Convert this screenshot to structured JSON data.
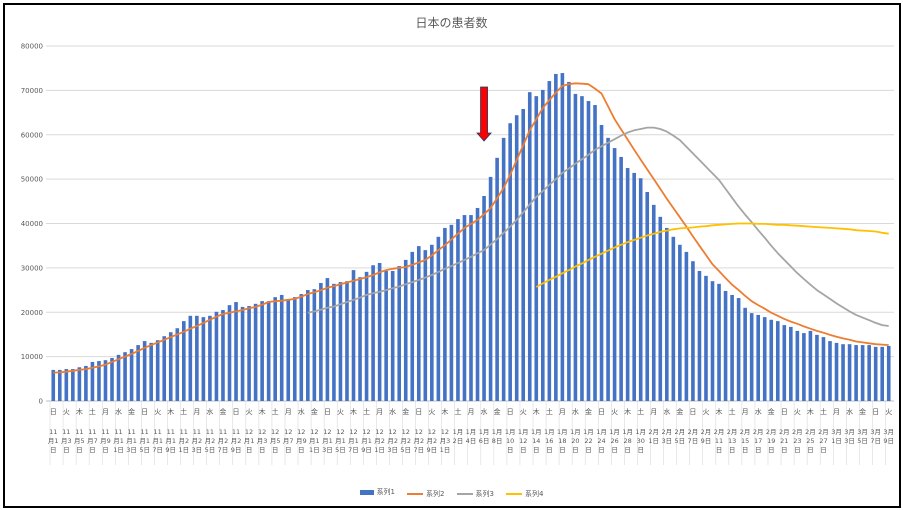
{
  "chart_data": {
    "type": "bar",
    "title": "日本の患者数",
    "ylim": [
      0,
      80000
    ],
    "y_ticks": [
      "0",
      "10000",
      "20000",
      "30000",
      "40000",
      "50000",
      "60000",
      "70000",
      "80000"
    ],
    "grid": true,
    "legend_placement": "bottom",
    "x_tick_weekdays": [
      "日",
      "火",
      "木",
      "土",
      "月",
      "水",
      "金",
      "日",
      "火",
      "木",
      "土",
      "月",
      "水",
      "金",
      "日",
      "火",
      "木",
      "土",
      "月",
      "水",
      "金",
      "日",
      "火",
      "木",
      "土",
      "月",
      "水",
      "金",
      "日",
      "火",
      "木",
      "土",
      "月",
      "水",
      "金",
      "日",
      "火",
      "木",
      "土",
      "月",
      "水",
      "金",
      "日",
      "火",
      "木",
      "土",
      "月",
      "水",
      "金",
      "日",
      "火",
      "木",
      "土",
      "月",
      "水",
      "金",
      "日",
      "火",
      "木",
      "土",
      "月",
      "水",
      "金",
      "日",
      "火"
    ],
    "x_tick_dates": [
      "11月1日",
      "11月3日",
      "11月5日",
      "11月7日",
      "11月9日",
      "11月11日",
      "11月13日",
      "11月15日",
      "11月17日",
      "11月19日",
      "11月21日",
      "11月23日",
      "11月25日",
      "11月27日",
      "11月29日",
      "12月1日",
      "12月3日",
      "12月5日",
      "12月7日",
      "12月9日",
      "12月11日",
      "12月13日",
      "12月15日",
      "12月17日",
      "12月19日",
      "12月21日",
      "12月23日",
      "12月25日",
      "12月27日",
      "12月29日",
      "12月31日",
      "1月2日",
      "1月4日",
      "1月6日",
      "1月8日",
      "1月10日",
      "1月12日",
      "1月14日",
      "1月16日",
      "1月18日",
      "1月20日",
      "1月22日",
      "1月24日",
      "1月26日",
      "1月28日",
      "1月30日",
      "2月1日",
      "2月3日",
      "2月5日",
      "2月7日",
      "2月9日",
      "2月11日",
      "2月13日",
      "2月15日",
      "2月17日",
      "2月19日",
      "2月21日",
      "2月23日",
      "2月25日",
      "2月27日",
      "3月1日",
      "3月3日",
      "3月5日",
      "3月7日",
      "3月9日"
    ],
    "series": [
      {
        "name": "系列1",
        "type": "bar",
        "color": "#4472C4",
        "values": [
          7000,
          7000,
          7200,
          7200,
          7600,
          7900,
          8800,
          9000,
          9200,
          9700,
          10400,
          11000,
          11700,
          12600,
          13500,
          13100,
          13700,
          14600,
          15500,
          16400,
          18000,
          19200,
          19200,
          18900,
          19200,
          20100,
          20500,
          21600,
          22300,
          21200,
          21400,
          21900,
          22500,
          22500,
          23400,
          23900,
          22800,
          23400,
          24100,
          25000,
          25200,
          26600,
          27700,
          26400,
          26800,
          27000,
          29500,
          27900,
          29100,
          30600,
          31100,
          29300,
          29300,
          30400,
          31800,
          33600,
          34900,
          34000,
          35200,
          37000,
          39000,
          39700,
          41000,
          41900,
          41900,
          43500,
          46200,
          50500,
          54800,
          59300,
          62600,
          64400,
          65800,
          69600,
          68700,
          70100,
          72100,
          73700,
          73900,
          71900,
          69200,
          68700,
          67600,
          66700,
          62200,
          59300,
          57000,
          55000,
          52500,
          51400,
          50200,
          47100,
          44200,
          41500,
          39000,
          37000,
          35200,
          33600,
          31500,
          29300,
          28200,
          27000,
          26400,
          24800,
          23900,
          23200,
          21000,
          19800,
          19400,
          18900,
          18300,
          18000,
          17100,
          16700,
          15800,
          15300,
          15800,
          14900,
          14400,
          13500,
          13100,
          12800,
          12800,
          12600,
          12600,
          12600,
          12200,
          12200,
          12400
        ]
      },
      {
        "name": "系列2",
        "type": "line",
        "color": "#ED7D31",
        "values": [
          6400,
          6450,
          6600,
          6800,
          7000,
          7200,
          7500,
          7800,
          8200,
          8800,
          9400,
          10000,
          10600,
          11300,
          12000,
          12600,
          13200,
          13800,
          14400,
          15000,
          15600,
          16300,
          16900,
          17600,
          18300,
          19000,
          19600,
          19900,
          20200,
          20500,
          20900,
          21200,
          21700,
          22300,
          22500,
          22600,
          22800,
          23000,
          23500,
          24100,
          24500,
          25000,
          25500,
          25900,
          26300,
          26700,
          27100,
          27500,
          27900,
          28400,
          29000,
          29500,
          29800,
          30000,
          30200,
          30700,
          31200,
          31800,
          32800,
          34000,
          35100,
          36400,
          37700,
          39000,
          39900,
          40800,
          42100,
          43500,
          45700,
          48000,
          51000,
          54300,
          57600,
          61000,
          63500,
          66000,
          67800,
          69500,
          71000,
          71400,
          71600,
          71500,
          71400,
          70400,
          69300,
          66400,
          63500,
          61200,
          58900,
          56600,
          54400,
          52200,
          50000,
          47800,
          45600,
          43500,
          41400,
          39300,
          37100,
          35000,
          32900,
          30800,
          29300,
          27700,
          26200,
          25000,
          23700,
          22500,
          21600,
          20800,
          19900,
          19200,
          18500,
          17900,
          17400,
          16800,
          16300,
          15800,
          15400,
          14900,
          14500,
          14100,
          13800,
          13400,
          13200,
          13000,
          12800,
          12700,
          12600
        ]
      },
      {
        "name": "系列3",
        "type": "line",
        "color": "#A5A5A5",
        "values": [
          null,
          null,
          null,
          null,
          null,
          null,
          null,
          null,
          null,
          null,
          null,
          null,
          null,
          null,
          null,
          null,
          null,
          null,
          null,
          null,
          null,
          null,
          null,
          null,
          null,
          null,
          null,
          null,
          null,
          null,
          null,
          null,
          null,
          null,
          null,
          null,
          null,
          null,
          null,
          19900,
          20200,
          20600,
          21000,
          21300,
          21800,
          22300,
          22800,
          23300,
          23900,
          24300,
          24600,
          25000,
          25400,
          25800,
          26300,
          26800,
          27300,
          27800,
          28400,
          29100,
          29800,
          30400,
          31100,
          31800,
          32500,
          33300,
          34000,
          35300,
          36500,
          37900,
          39300,
          40800,
          42500,
          44300,
          46000,
          47300,
          48700,
          50000,
          51400,
          52400,
          53500,
          54500,
          55500,
          56600,
          57400,
          58200,
          59000,
          59800,
          60500,
          61000,
          61300,
          61600,
          61600,
          61300,
          60700,
          59800,
          58800,
          57300,
          55800,
          54300,
          52800,
          51300,
          49800,
          47800,
          45800,
          43800,
          42000,
          40300,
          38500,
          36800,
          35000,
          33300,
          31800,
          30300,
          28800,
          27500,
          26200,
          25000,
          24000,
          23000,
          22000,
          21100,
          20200,
          19400,
          18800,
          18200,
          17600,
          17100,
          16900
        ]
      },
      {
        "name": "系列4",
        "type": "line",
        "color": "#FFC000",
        "values": [
          null,
          null,
          null,
          null,
          null,
          null,
          null,
          null,
          null,
          null,
          null,
          null,
          null,
          null,
          null,
          null,
          null,
          null,
          null,
          null,
          null,
          null,
          null,
          null,
          null,
          null,
          null,
          null,
          null,
          null,
          null,
          null,
          null,
          null,
          null,
          null,
          null,
          null,
          null,
          null,
          null,
          null,
          null,
          null,
          null,
          null,
          null,
          null,
          null,
          null,
          null,
          null,
          null,
          null,
          null,
          null,
          null,
          null,
          null,
          null,
          null,
          null,
          null,
          null,
          null,
          null,
          null,
          null,
          null,
          null,
          null,
          null,
          null,
          null,
          25700,
          26500,
          27300,
          28000,
          28800,
          29500,
          30300,
          31000,
          31800,
          32500,
          33200,
          33900,
          34600,
          35200,
          35800,
          36300,
          36800,
          37300,
          37700,
          38100,
          38400,
          38700,
          38900,
          39000,
          39100,
          39300,
          39400,
          39600,
          39700,
          39800,
          39900,
          40000,
          40000,
          40000,
          39900,
          39900,
          39800,
          39700,
          39700,
          39600,
          39500,
          39400,
          39300,
          39200,
          39100,
          39000,
          38900,
          38800,
          38700,
          38500,
          38400,
          38300,
          38200,
          37900,
          37700
        ]
      }
    ],
    "annotation": {
      "type": "arrow-down",
      "color": "#FF0000",
      "at_date": "1月6日"
    }
  }
}
